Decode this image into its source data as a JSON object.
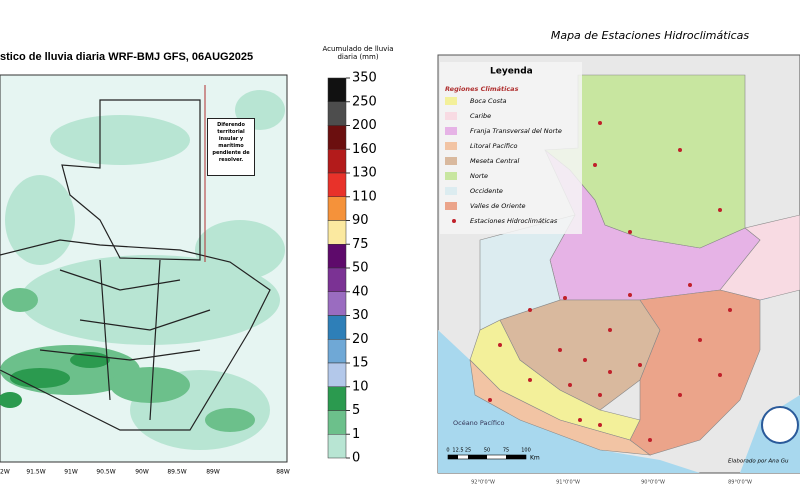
{
  "rain_map": {
    "title": "stico de lluvia diaria WRF-BMJ GFS,  06AUG2025",
    "note": "Diferendo territorial insular y marítimo pendiente de resolver.",
    "longitude_labels": [
      "92W",
      "91.5W",
      "91W",
      "90.5W",
      "90W",
      "89.5W",
      "89W",
      "88W"
    ]
  },
  "colorbar": {
    "title": "Acumulado de lluvia diaria (mm)",
    "levels": [
      350,
      250,
      200,
      160,
      130,
      110,
      90,
      75,
      50,
      40,
      30,
      20,
      15,
      10,
      5,
      1,
      0
    ],
    "colors": [
      "#111111",
      "#4d4d4d",
      "#6b0f0f",
      "#b31b1b",
      "#e8322a",
      "#f5923a",
      "#fbe9a0",
      "#5e0a6b",
      "#7b3294",
      "#9a6cc0",
      "#2e7fb8",
      "#6fa8d6",
      "#b3c8ea",
      "#2b9a4f",
      "#6cc08b",
      "#b8e5d3",
      "#e6f5f2"
    ]
  },
  "station_map": {
    "title": "Mapa de Estaciones Hidroclimáticas",
    "legend_title": "Leyenda",
    "legend_subtitle": "Regiones Climáticas",
    "regions": [
      {
        "name": "Boca Costa",
        "color": "#f3f09a"
      },
      {
        "name": "Caribe",
        "color": "#f8dbe3"
      },
      {
        "name": "Franja Transversal del Norte",
        "color": "#e6b3e6"
      },
      {
        "name": "Litoral Pacífico",
        "color": "#f2c4a4"
      },
      {
        "name": "Meseta Central",
        "color": "#d9b99e"
      },
      {
        "name": "Norte",
        "color": "#c8e6a0"
      },
      {
        "name": "Occidente",
        "color": "#dcecf0"
      },
      {
        "name": "Valles de Oriente",
        "color": "#eba48a"
      }
    ],
    "stations_label": "Estaciones Hidroclimáticas",
    "ocean_label": "Océano Pacífico",
    "scale_labels": [
      "0",
      "12.5",
      "25",
      "50",
      "75",
      "100"
    ],
    "scale_unit": "Km",
    "credit": "Elaborado por Ana Gu",
    "longitude_labels": [
      "92°0'0\"W",
      "91°0'0\"W",
      "90°0'0\"W",
      "89°0'0\"W"
    ]
  }
}
